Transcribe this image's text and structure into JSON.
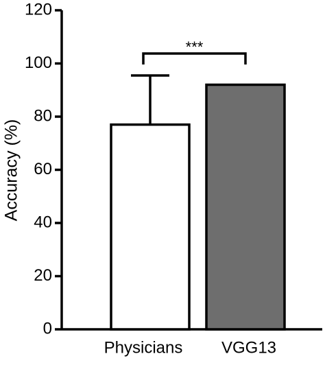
{
  "chart_data": {
    "type": "bar",
    "y_label": "Accuracy (%)",
    "categories": [
      "Physicians",
      "VGG13"
    ],
    "values": [
      77,
      92
    ],
    "errors": [
      18.5,
      null
    ],
    "colors": [
      "#ffffff",
      "#6e6e6e"
    ],
    "ylim": [
      0,
      120
    ],
    "yticks": [
      0,
      20,
      40,
      60,
      80,
      100,
      120
    ],
    "annotation": "***"
  }
}
